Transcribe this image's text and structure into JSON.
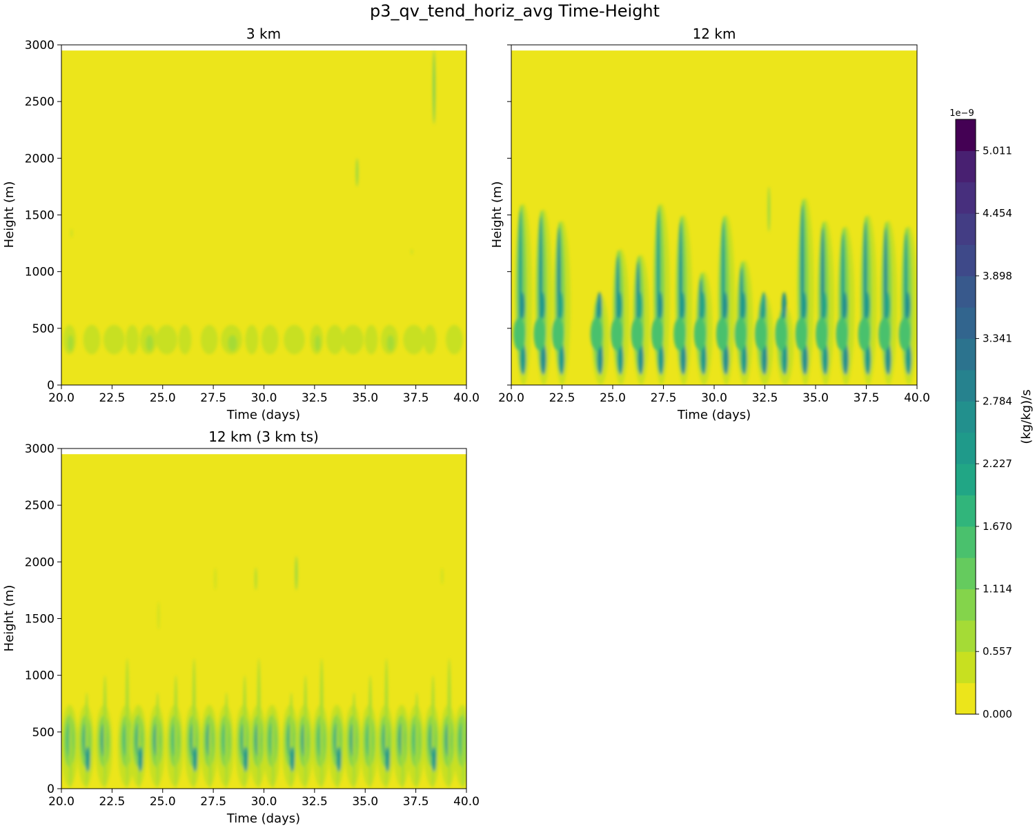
{
  "chart_data": {
    "type": "heatmap",
    "suptitle": "p3_qv_tend_horiz_avg Time-Height",
    "panels": [
      {
        "id": "p3km",
        "title": "3 km",
        "xlabel": "Time (days)",
        "ylabel": "Height (m)",
        "xlim": [
          20.0,
          40.0
        ],
        "ylim": [
          0,
          3000
        ],
        "data_top": 2950,
        "xticks": [
          "20.0",
          "22.5",
          "25.0",
          "27.5",
          "30.0",
          "32.5",
          "35.0",
          "37.5",
          "40.0"
        ],
        "yticks": [
          "0",
          "500",
          "1000",
          "1500",
          "2000",
          "2500",
          "3000"
        ],
        "show_ytick_labels": true,
        "pattern": "weak_band",
        "band_center_m": 400,
        "band_halfwidth_m": 130,
        "peak_level": 1,
        "event_times": [
          20.4,
          21.5,
          22.6,
          23.5,
          24.3,
          25.2,
          26.1,
          27.3,
          28.4,
          29.4,
          30.3,
          31.5,
          32.6,
          33.5,
          34.4,
          35.3,
          36.2,
          37.4,
          38.2,
          39.4
        ],
        "streaks": [
          {
            "t": 38.4,
            "h0": 2300,
            "h1": 2950,
            "level": 4
          },
          {
            "t": 34.6,
            "h0": 1750,
            "h1": 2000,
            "level": 3
          },
          {
            "t": 20.5,
            "h0": 1300,
            "h1": 1380,
            "level": 1
          },
          {
            "t": 37.3,
            "h0": 1150,
            "h1": 1200,
            "level": 1
          }
        ]
      },
      {
        "id": "p12km",
        "title": "12 km",
        "xlabel": "Time (days)",
        "ylabel": "Height (m)",
        "xlim": [
          20.0,
          40.0
        ],
        "ylim": [
          0,
          3000
        ],
        "data_top": 2950,
        "xticks": [
          "20.0",
          "22.5",
          "25.0",
          "27.5",
          "30.0",
          "32.5",
          "35.0",
          "37.5",
          "40.0"
        ],
        "yticks": [
          "0",
          "500",
          "1000",
          "1500",
          "2000",
          "2500",
          "3000"
        ],
        "show_ytick_labels": false,
        "pattern": "deep_convection",
        "event_times": [
          20.5,
          21.5,
          22.4,
          24.3,
          25.3,
          26.3,
          27.3,
          28.4,
          29.4,
          30.5,
          31.4,
          32.4,
          33.4,
          34.4,
          35.4,
          36.4,
          37.5,
          38.5,
          39.5
        ],
        "event_tops_m": [
          1600,
          1550,
          1450,
          800,
          1200,
          1150,
          1600,
          1500,
          1000,
          1500,
          1100,
          800,
          700,
          1650,
          1450,
          1400,
          1500,
          1450,
          1400
        ],
        "streaks": [
          {
            "t": 32.7,
            "h0": 1350,
            "h1": 1750,
            "level": 3
          }
        ]
      },
      {
        "id": "p12km3ts",
        "title": "12 km (3 km ts)",
        "xlabel": "Time (days)",
        "ylabel": "Height (m)",
        "xlim": [
          20.0,
          40.0
        ],
        "ylim": [
          0,
          3000
        ],
        "data_top": 2950,
        "xticks": [
          "20.0",
          "22.5",
          "25.0",
          "27.5",
          "30.0",
          "32.5",
          "35.0",
          "37.5",
          "40.0"
        ],
        "yticks": [
          "0",
          "500",
          "1000",
          "1500",
          "2000",
          "2500",
          "3000"
        ],
        "show_ytick_labels": true,
        "pattern": "shallow_band",
        "event_times": [
          20.4,
          21.2,
          22.1,
          23.2,
          23.8,
          24.7,
          25.6,
          26.5,
          27.3,
          28.1,
          29.0,
          29.7,
          30.4,
          31.3,
          32.0,
          32.8,
          33.6,
          34.4,
          35.2,
          36.0,
          36.8,
          37.5,
          38.3,
          39.1,
          39.8
        ],
        "streaks": [
          {
            "t": 31.6,
            "h0": 1750,
            "h1": 2050,
            "level": 3
          },
          {
            "t": 29.6,
            "h0": 1750,
            "h1": 1950,
            "level": 2
          },
          {
            "t": 27.6,
            "h0": 1750,
            "h1": 1950,
            "level": 1
          },
          {
            "t": 38.8,
            "h0": 1800,
            "h1": 1950,
            "level": 1
          },
          {
            "t": 24.8,
            "h0": 1400,
            "h1": 1650,
            "level": 1
          }
        ]
      }
    ],
    "colorbar": {
      "label": "(kg/kg)/s",
      "exponent": "1e−9",
      "vmin": 0.0,
      "vmax": 5.29,
      "n_levels": 19,
      "tick_values": [
        0.0,
        0.557,
        1.114,
        1.67,
        2.227,
        2.784,
        3.341,
        3.898,
        4.454,
        5.011
      ],
      "tick_labels": [
        "0.000",
        "0.557",
        "1.114",
        "1.670",
        "2.227",
        "2.784",
        "3.341",
        "3.898",
        "4.454",
        "5.011"
      ],
      "colors": [
        "#ece51b",
        "#c8e020",
        "#a5db36",
        "#84d44b",
        "#65cb5e",
        "#4ac16d",
        "#31b57b",
        "#21a685",
        "#1f9a8a",
        "#22908d",
        "#26828e",
        "#2c738e",
        "#32658e",
        "#38598c",
        "#3e4989",
        "#433d84",
        "#472f7d",
        "#482071",
        "#440154"
      ]
    }
  }
}
